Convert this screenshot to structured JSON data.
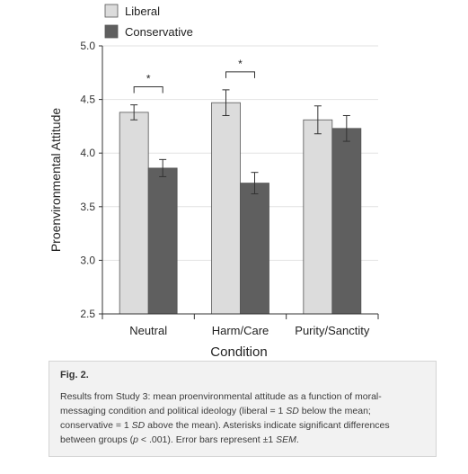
{
  "chart_data": {
    "type": "bar",
    "categories": [
      "Neutral",
      "Harm/Care",
      "Purity/Sanctity"
    ],
    "series": [
      {
        "name": "Liberal",
        "color": "#dcdcdc",
        "values": [
          4.38,
          4.47,
          4.31
        ],
        "errors": [
          0.07,
          0.12,
          0.13
        ]
      },
      {
        "name": "Conservative",
        "color": "#5f5f5f",
        "values": [
          3.86,
          3.72,
          4.23
        ],
        "errors": [
          0.08,
          0.1,
          0.12
        ]
      }
    ],
    "xlabel": "Condition",
    "ylabel": "Proenvironmental Attitude",
    "ylim": [
      2.5,
      5.0
    ],
    "yticks": [
      "2.5",
      "3.0",
      "3.5",
      "4.0",
      "4.5",
      "5.0"
    ],
    "legend_position": "top-left",
    "annotations": [
      {
        "category": "Neutral",
        "text": "*"
      },
      {
        "category": "Harm/Care",
        "text": "*"
      }
    ]
  },
  "caption": {
    "label": "Fig. 2.",
    "lines": [
      [
        {
          "t": "Results from Study 3: mean proenvironmental attitude as a function of moral-"
        }
      ],
      [
        {
          "t": "messaging condition and political ideology (liberal = 1 "
        },
        {
          "t": "SD",
          "i": true
        },
        {
          "t": " below the mean;"
        }
      ],
      [
        {
          "t": "conservative = 1 "
        },
        {
          "t": "SD",
          "i": true
        },
        {
          "t": " above the mean). Asterisks indicate significant differences"
        }
      ],
      [
        {
          "t": "between groups ("
        },
        {
          "t": "p",
          "i": true
        },
        {
          "t": " < .001). Error bars represent ±1 "
        },
        {
          "t": "SEM",
          "i": true
        },
        {
          "t": "."
        }
      ]
    ]
  }
}
